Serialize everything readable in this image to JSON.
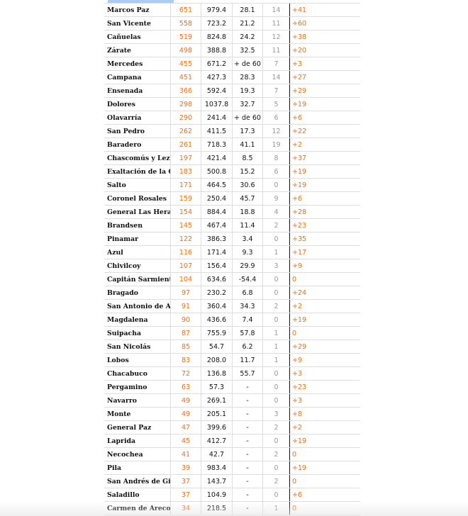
{
  "colors": {
    "accent": "#f26d0f",
    "header_bar": "#a9cdf6",
    "muted": "#999999"
  },
  "rows": [
    {
      "name": "Marcos Paz",
      "cases": "651",
      "rate": "979.4",
      "days": "28.1",
      "deaths": "14",
      "delta": "+41"
    },
    {
      "name": "San Vicente",
      "cases": "558",
      "rate": "723.2",
      "days": "21.2",
      "deaths": "11",
      "delta": "+60"
    },
    {
      "name": "Cañuelas",
      "cases": "519",
      "rate": "824.8",
      "days": "24.2",
      "deaths": "12",
      "delta": "+38"
    },
    {
      "name": "Zárate",
      "cases": "498",
      "rate": "388.8",
      "days": "32.5",
      "deaths": "11",
      "delta": "+20"
    },
    {
      "name": "Mercedes",
      "cases": "455",
      "rate": "671.2",
      "days": "+ de 60",
      "deaths": "7",
      "delta": "+3"
    },
    {
      "name": "Campana",
      "cases": "451",
      "rate": "427.3",
      "days": "28.3",
      "deaths": "14",
      "delta": "+27"
    },
    {
      "name": "Ensenada",
      "cases": "366",
      "rate": "592.4",
      "days": "19.3",
      "deaths": "7",
      "delta": "+29"
    },
    {
      "name": "Dolores",
      "cases": "298",
      "rate": "1037.8",
      "days": "32.7",
      "deaths": "5",
      "delta": "+19"
    },
    {
      "name": "Olavarría",
      "cases": "290",
      "rate": "241.4",
      "days": "+ de 60",
      "deaths": "6",
      "delta": "+6"
    },
    {
      "name": "San Pedro",
      "cases": "262",
      "rate": "411.5",
      "days": "17.3",
      "deaths": "12",
      "delta": "+22"
    },
    {
      "name": "Baradero",
      "cases": "261",
      "rate": "718.3",
      "days": "41.1",
      "deaths": "19",
      "delta": "+2"
    },
    {
      "name": "Chascomús y Lezama",
      "cases": "197",
      "rate": "421.4",
      "days": "8.5",
      "deaths": "8",
      "delta": "+37"
    },
    {
      "name": "Exaltación de la Cruz",
      "cases": "183",
      "rate": "500.8",
      "days": "15.2",
      "deaths": "6",
      "delta": "+19"
    },
    {
      "name": "Salto",
      "cases": "171",
      "rate": "464.5",
      "days": "30.6",
      "deaths": "0",
      "delta": "+19"
    },
    {
      "name": "Coronel Rosales",
      "cases": "159",
      "rate": "250.4",
      "days": "45.7",
      "deaths": "9",
      "delta": "+6"
    },
    {
      "name": "General Las Heras",
      "cases": "154",
      "rate": "884.4",
      "days": "18.8",
      "deaths": "4",
      "delta": "+28"
    },
    {
      "name": "Brandsen",
      "cases": "145",
      "rate": "467.4",
      "days": "11.4",
      "deaths": "2",
      "delta": "+23"
    },
    {
      "name": "Pinamar",
      "cases": "122",
      "rate": "386.3",
      "days": "3.4",
      "deaths": "0",
      "delta": "+35"
    },
    {
      "name": "Azul",
      "cases": "116",
      "rate": "171.4",
      "days": "9.3",
      "deaths": "1",
      "delta": "+17"
    },
    {
      "name": "Chivilcoy",
      "cases": "107",
      "rate": "156.4",
      "days": "29.9",
      "deaths": "3",
      "delta": "+9"
    },
    {
      "name": "Capitán Sarmiento",
      "cases": "104",
      "rate": "634.6",
      "days": "-54.4",
      "deaths": "0",
      "delta": "0"
    },
    {
      "name": "Bragado",
      "cases": "97",
      "rate": "230.2",
      "days": "6.8",
      "deaths": "0",
      "delta": "+24"
    },
    {
      "name": "San Antonio de Areco",
      "cases": "91",
      "rate": "360.4",
      "days": "34.3",
      "deaths": "2",
      "delta": "+2"
    },
    {
      "name": "Magdalena",
      "cases": "90",
      "rate": "436.6",
      "days": "7.4",
      "deaths": "0",
      "delta": "+19"
    },
    {
      "name": "Suipacha",
      "cases": "87",
      "rate": "755.9",
      "days": "57.8",
      "deaths": "1",
      "delta": "0"
    },
    {
      "name": "San Nicolás",
      "cases": "85",
      "rate": "54.7",
      "days": "6.2",
      "deaths": "1",
      "delta": "+29"
    },
    {
      "name": "Lobos",
      "cases": "83",
      "rate": "208.0",
      "days": "11.7",
      "deaths": "1",
      "delta": "+9"
    },
    {
      "name": "Chacabuco",
      "cases": "72",
      "rate": "136.8",
      "days": "55.7",
      "deaths": "0",
      "delta": "+3"
    },
    {
      "name": "Pergamino",
      "cases": "63",
      "rate": "57.3",
      "days": "-",
      "deaths": "0",
      "delta": "+23"
    },
    {
      "name": "Navarro",
      "cases": "49",
      "rate": "269.1",
      "days": "-",
      "deaths": "0",
      "delta": "+3"
    },
    {
      "name": "Monte",
      "cases": "49",
      "rate": "205.1",
      "days": "-",
      "deaths": "3",
      "delta": "+8"
    },
    {
      "name": "General Paz",
      "cases": "47",
      "rate": "399.6",
      "days": "-",
      "deaths": "2",
      "delta": "+2"
    },
    {
      "name": "Laprida",
      "cases": "45",
      "rate": "412.7",
      "days": "-",
      "deaths": "0",
      "delta": "+19"
    },
    {
      "name": "Necochea",
      "cases": "41",
      "rate": "42.7",
      "days": "-",
      "deaths": "2",
      "delta": "0"
    },
    {
      "name": "Pila",
      "cases": "39",
      "rate": "983.4",
      "days": "-",
      "deaths": "0",
      "delta": "+19"
    },
    {
      "name": "San Andrés de Giles",
      "cases": "37",
      "rate": "143.7",
      "days": "-",
      "deaths": "2",
      "delta": "0"
    },
    {
      "name": "Saladillo",
      "cases": "37",
      "rate": "104.9",
      "days": "-",
      "deaths": "0",
      "delta": "+6"
    },
    {
      "name": "Carmen de Areco",
      "cases": "34",
      "rate": "218.5",
      "days": "-",
      "deaths": "1",
      "delta": "0"
    }
  ]
}
